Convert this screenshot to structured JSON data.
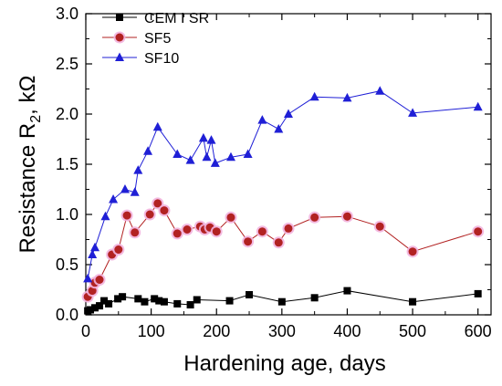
{
  "chart_data": {
    "type": "line",
    "title": "",
    "xlabel": "Hardening age, days",
    "ylabel_main": "Resistance R",
    "ylabel_sub": "2",
    "ylabel_unit": ", kΩ",
    "xlim": [
      0,
      620
    ],
    "ylim": [
      0.0,
      3.0
    ],
    "xticks": [
      0,
      100,
      200,
      300,
      400,
      500,
      600
    ],
    "yticks": [
      0.0,
      0.5,
      1.0,
      1.5,
      2.0,
      2.5,
      3.0
    ],
    "ytick_labels": [
      "0.0",
      "0.5",
      "1.0",
      "1.5",
      "2.0",
      "2.5",
      "3.0"
    ],
    "grid": false,
    "legend_position": "top-left",
    "series": [
      {
        "name": "CEM I SR",
        "color": "#000000",
        "marker": "square",
        "x": [
          3,
          7,
          14,
          21,
          28,
          35,
          49,
          56,
          80,
          90,
          105,
          112,
          120,
          140,
          160,
          170,
          220,
          250,
          300,
          350,
          400,
          500,
          600
        ],
        "y": [
          0.04,
          0.05,
          0.07,
          0.09,
          0.14,
          0.11,
          0.16,
          0.18,
          0.16,
          0.13,
          0.16,
          0.14,
          0.13,
          0.11,
          0.1,
          0.15,
          0.14,
          0.2,
          0.13,
          0.17,
          0.24,
          0.13,
          0.21
        ]
      },
      {
        "name": "SF5",
        "color": "#b22222",
        "marker": "circle",
        "x": [
          3,
          10,
          14,
          21,
          40,
          50,
          63,
          75,
          98,
          110,
          120,
          140,
          155,
          175,
          182,
          190,
          200,
          222,
          248,
          270,
          295,
          310,
          350,
          400,
          450,
          500,
          600
        ],
        "y": [
          0.18,
          0.24,
          0.32,
          0.35,
          0.6,
          0.65,
          0.99,
          0.82,
          1.0,
          1.11,
          1.04,
          0.81,
          0.85,
          0.88,
          0.85,
          0.87,
          0.83,
          0.97,
          0.73,
          0.83,
          0.72,
          0.86,
          0.97,
          0.98,
          0.88,
          0.63,
          0.83
        ]
      },
      {
        "name": "SF10",
        "color": "#1f1fd6",
        "marker": "triangle",
        "x": [
          3,
          10,
          14,
          30,
          42,
          60,
          75,
          80,
          95,
          110,
          140,
          160,
          180,
          185,
          192,
          198,
          222,
          248,
          270,
          295,
          310,
          350,
          400,
          450,
          500,
          600
        ],
        "y": [
          0.36,
          0.6,
          0.67,
          0.98,
          1.15,
          1.25,
          1.22,
          1.44,
          1.63,
          1.87,
          1.6,
          1.54,
          1.76,
          1.57,
          1.74,
          1.51,
          1.57,
          1.6,
          1.94,
          1.85,
          2.0,
          2.17,
          2.16,
          2.23,
          2.01,
          2.07
        ]
      }
    ]
  }
}
